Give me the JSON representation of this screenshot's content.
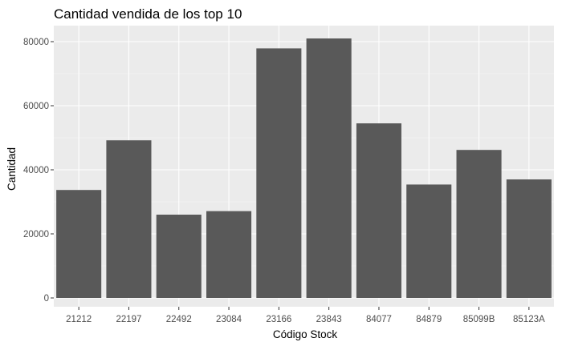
{
  "chart_data": {
    "type": "bar",
    "title": "Cantidad vendida de los top 10",
    "xlabel": "Código Stock",
    "ylabel": "Cantidad",
    "categories": [
      "21212",
      "22197",
      "22492",
      "23084",
      "23166",
      "23843",
      "84077",
      "84879",
      "85099B",
      "85123A"
    ],
    "values": [
      33700,
      49200,
      26000,
      27100,
      77900,
      81000,
      54500,
      35400,
      46200,
      37000
    ],
    "ylim": [
      0,
      85000
    ],
    "yticks": [
      0,
      20000,
      40000,
      60000,
      80000
    ],
    "ytick_labels": [
      "0",
      "20000",
      "40000",
      "60000",
      "80000"
    ],
    "grid": true,
    "legend": "none",
    "colors": {
      "bar": "#595959",
      "panel": "#ebebeb",
      "grid_major": "#ffffff",
      "grid_minor": "#f5f5f5",
      "tick_text": "#4d4d4d",
      "title_text": "#000000"
    }
  }
}
